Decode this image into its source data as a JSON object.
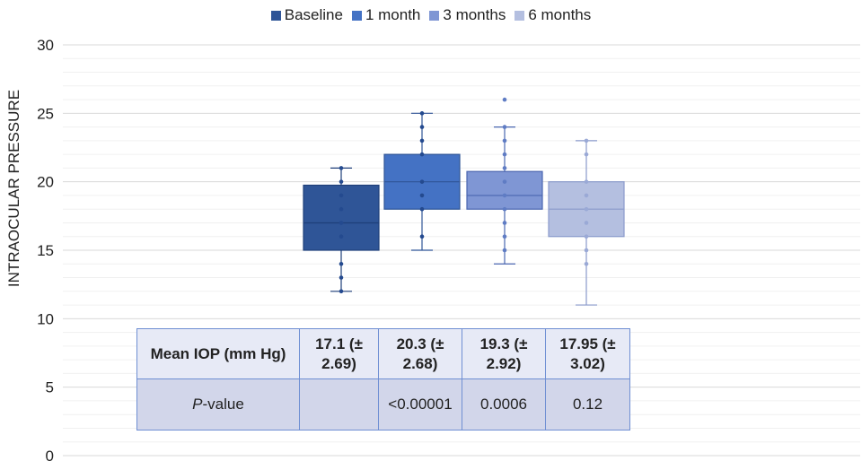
{
  "chart_data": {
    "type": "box",
    "ylabel": "INTRAOCULAR PRESSURE",
    "xlabel": "",
    "ylim": [
      0,
      30
    ],
    "yticks": [
      0,
      5,
      10,
      15,
      20,
      25,
      30
    ],
    "grid": "horizontal",
    "legend_position": "top",
    "series": [
      {
        "name": "Baseline",
        "color": "#2f5597",
        "min": 12,
        "q1": 15,
        "median": 17,
        "q3": 19.75,
        "max": 21,
        "points": [
          12,
          13,
          14,
          16,
          17,
          18,
          19,
          20,
          21
        ]
      },
      {
        "name": "1 month",
        "color": "#4472c4",
        "min": 15,
        "q1": 18,
        "median": 20,
        "q3": 22,
        "max": 25,
        "points": [
          16,
          18,
          19,
          20,
          22,
          23,
          24,
          25
        ]
      },
      {
        "name": "3 months",
        "color": "#7f96d4",
        "min": 14,
        "q1": 18,
        "median": 19,
        "q3": 20.75,
        "max": 24,
        "points": [
          15,
          16,
          17,
          18,
          19,
          20,
          21,
          22,
          23,
          24,
          26
        ]
      },
      {
        "name": "6 months",
        "color": "#b4bfe0",
        "min": 11,
        "q1": 16,
        "median": 18,
        "q3": 20,
        "max": 23,
        "points": [
          14,
          15,
          16,
          17,
          18,
          19,
          20,
          22,
          23
        ]
      }
    ],
    "table": {
      "rows": [
        [
          "Mean IOP (mm Hg)",
          "17.1 (± 2.69)",
          "20.3 (± 2.68)",
          "19.3 (± 2.92)",
          "17.95 (± 3.02)"
        ],
        [
          "P-value",
          "",
          "<0.00001",
          "0.0006",
          "0.12"
        ]
      ]
    }
  },
  "table_display": {
    "r1": [
      "Mean IOP (mm Hg)",
      "17.1 (± 2.69)",
      "20.3 (± 2.68)",
      "19.3 (± 2.92)",
      "17.95 (± 3.02)"
    ],
    "r2_label_italic": "P",
    "r2_label_rest": "-value",
    "r2": [
      "",
      "<0.00001",
      "0.0006",
      "0.12"
    ]
  }
}
